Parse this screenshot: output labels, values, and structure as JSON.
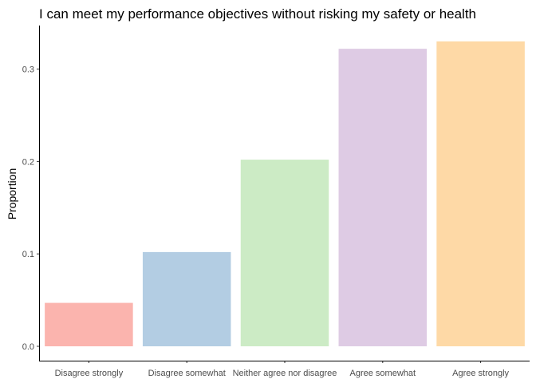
{
  "chart_data": {
    "type": "bar",
    "title": "I can meet my performance objectives without risking my safety or health",
    "xlabel": "",
    "ylabel": "Proportion",
    "categories": [
      "Disagree strongly",
      "Disagree somewhat",
      "Neither agree nor disagree",
      "Agree somewhat",
      "Agree strongly"
    ],
    "values": [
      0.047,
      0.102,
      0.202,
      0.322,
      0.33
    ],
    "colors": [
      "#FBB4AE",
      "#B3CDE3",
      "#CCEBC5",
      "#DECBE4",
      "#FED9A6"
    ],
    "ylim": [
      0,
      0.345
    ],
    "yticks": [
      0.0,
      0.1,
      0.2,
      0.3
    ],
    "ytick_labels": [
      "0.0",
      "0.1",
      "0.2",
      "0.3"
    ],
    "grid": false,
    "legend": "none"
  }
}
